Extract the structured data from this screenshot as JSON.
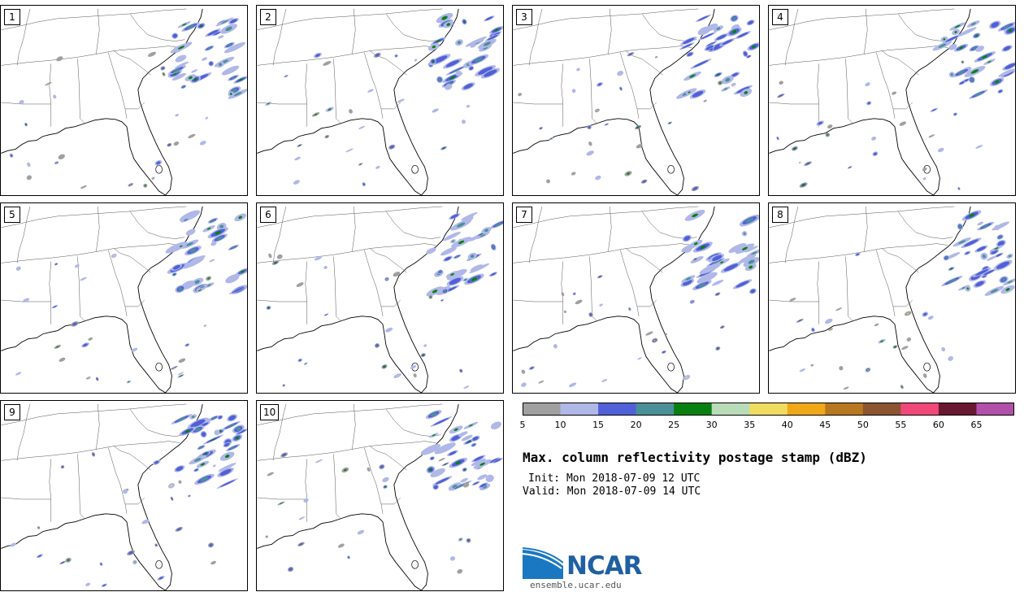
{
  "title": "Max. column reflectivity postage stamp (dBZ)",
  "init_text": "Init: Mon 2018-07-09 12 UTC",
  "valid_text": "Valid: Mon 2018-07-09 14 UTC",
  "logo": {
    "name": "NCAR",
    "url": "ensemble.ucar.edu"
  },
  "members": [
    "1",
    "2",
    "3",
    "4",
    "5",
    "6",
    "7",
    "8",
    "9",
    "10"
  ],
  "colorbar": {
    "units": "dBZ",
    "labels": [
      "5",
      "10",
      "15",
      "20",
      "25",
      "30",
      "35",
      "40",
      "45",
      "50",
      "55",
      "60",
      "65"
    ],
    "colors": [
      "#a0a0a0",
      "#b0b8e8",
      "#5060d8",
      "#4a9098",
      "#088010",
      "#b8dcb8",
      "#f0dc60",
      "#f0a818",
      "#b87820",
      "#8c5430",
      "#f04878",
      "#681830",
      "#b050a8"
    ]
  }
}
